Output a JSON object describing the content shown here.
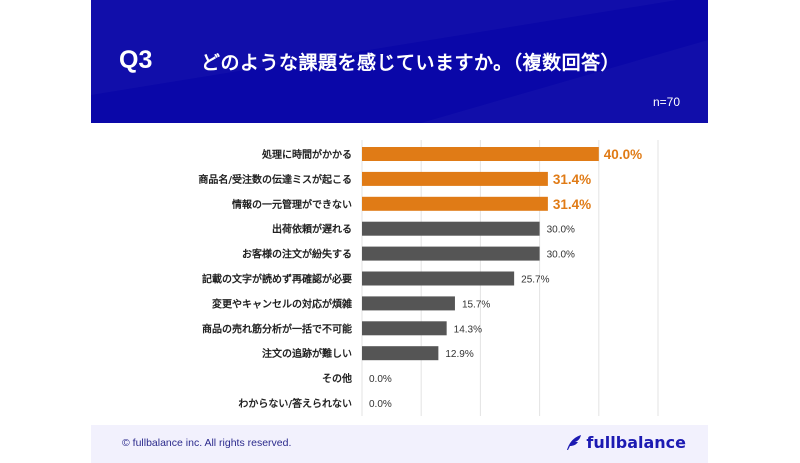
{
  "header": {
    "question_no": "Q3",
    "title": "どのような課題を感じていますか。（複数回答）",
    "sample_size": "n=70"
  },
  "footer": {
    "copyright": "© fullbalance inc. All rights reserved.",
    "logo_text": "fullbalance",
    "logo_icon": "feather-icon"
  },
  "colors": {
    "header_bg": "#0a07a8",
    "highlight": "#e07b16",
    "normal": "#555555",
    "grid": "#e3e3e3"
  },
  "chart_data": {
    "type": "bar",
    "orientation": "horizontal",
    "title": "どのような課題を感じていますか。（複数回答）",
    "xlabel": "",
    "ylabel": "",
    "xlim": [
      0,
      50
    ],
    "grid": true,
    "unit": "%",
    "categories": [
      "処理に時間がかかる",
      "商品名/受注数の伝達ミスが起こる",
      "情報の一元管理ができない",
      "出荷依頼が遅れる",
      "お客様の注文が紛失する",
      "記載の文字が読めず再確認が必要",
      "変更やキャンセルの対応が煩雑",
      "商品の売れ筋分析が一括で不可能",
      "注文の追跡が難しい",
      "その他",
      "わからない/答えられない"
    ],
    "values": [
      40.0,
      31.4,
      31.4,
      30.0,
      30.0,
      25.7,
      15.7,
      14.3,
      12.9,
      0.0,
      0.0
    ],
    "labels": [
      "40.0%",
      "31.4%",
      "31.4%",
      "30.0%",
      "30.0%",
      "25.7%",
      "15.7%",
      "14.3%",
      "12.9%",
      "0.0%",
      "0.0%"
    ],
    "highlighted": [
      true,
      true,
      true,
      false,
      false,
      false,
      false,
      false,
      false,
      false,
      false
    ]
  }
}
